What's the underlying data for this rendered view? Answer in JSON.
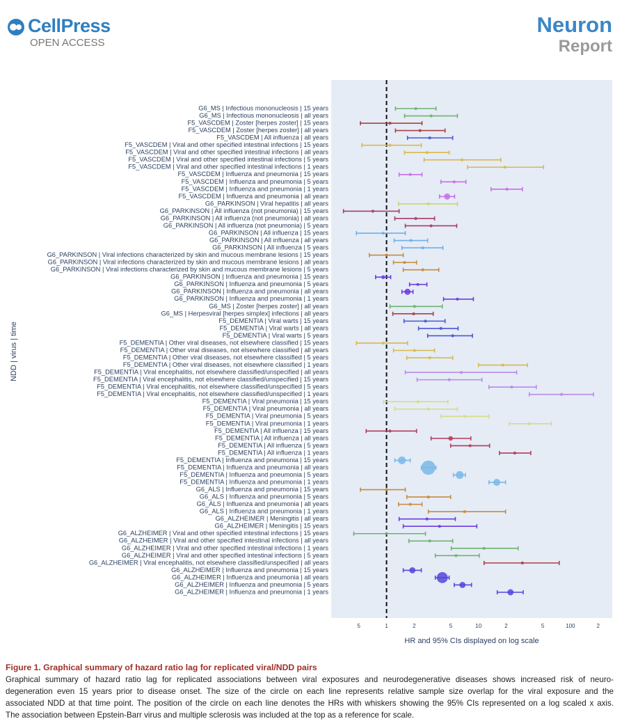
{
  "header": {
    "publisher": "CellPress",
    "access": "OPEN ACCESS",
    "journal": "Neuron",
    "article_type": "Report"
  },
  "chart_data": {
    "type": "forest",
    "ylabel": "NDD | virus | time",
    "xlabel": "HR and 95% CIs displayed on log scale",
    "xscale": "log",
    "xlim": [
      0.25,
      285
    ],
    "xticks": [
      {
        "value": 0.5,
        "label": "5"
      },
      1,
      2,
      5,
      10,
      {
        "value": 20,
        "label": "2"
      },
      {
        "value": 50,
        "label": "5"
      },
      100,
      {
        "value": 200,
        "label": "2"
      }
    ],
    "reference_line": 1,
    "categories": [
      "G6_MS | Infectious mononucleosis | 15 years",
      "G6_MS | Infectious mononucleosis | all years",
      "F5_VASCDEM | Zoster [herpes zoster] | 15 years",
      "F5_VASCDEM | Zoster [herpes zoster] | all years",
      "F5_VASCDEM | All influenza | all years",
      "F5_VASCDEM | Viral and other specified intestinal infections | 15 years",
      "F5_VASCDEM | Viral and other specified intestinal infections | all years",
      "F5_VASCDEM | Viral and other specified intestinal infections | 5 years",
      "F5_VASCDEM | Viral and other specified intestinal infections | 1 years",
      "F5_VASCDEM | Influenza and pneumonia | 15 years",
      "F5_VASCDEM | Influenza and pneumonia | 5 years",
      "F5_VASCDEM | Influenza and pneumonia | 1 years",
      "F5_VASCDEM | Influenza and pneumonia | all years",
      "G6_PARKINSON | Viral hepatitis | all years",
      "G6_PARKINSON | All influenza (not pneumonia) | 15 years",
      "G6_PARKINSON | All influenza (not pneumonia) | all years",
      "G6_PARKINSON | All influenza (not pneumonia) | 5 years",
      "G6_PARKINSON | All influenza | 15 years",
      "G6_PARKINSON | All influenza | all years",
      "G6_PARKINSON | All influenza | 5 years",
      "G6_PARKINSON | Viral infections characterized by skin and mucous membrane lesions | 15 years",
      "G6_PARKINSON | Viral infections characterized by skin and mucous membrane lesions | all years",
      "G6_PARKINSON | Viral infections characterized by skin and mucous membrane lesions | 5 years",
      "G6_PARKINSON | Influenza and pneumonia | 15 years",
      "G6_PARKINSON | Influenza and pneumonia | 5 years",
      "G6_PARKINSON | Influenza and pneumonia | all years",
      "G6_PARKINSON | Influenza and pneumonia | 1 years",
      "G6_MS | Zoster [herpes zoster] | all years",
      "G6_MS | Herpesviral [herpes simplex] infections | all years",
      "F5_DEMENTIA | Viral warts | 15 years",
      "F5_DEMENTIA | Viral warts | all years",
      "F5_DEMENTIA | Viral warts | 5 years",
      "F5_DEMENTIA | Other viral diseases, not elsewhere classified | 15 years",
      "F5_DEMENTIA | Other viral diseases, not elsewhere classified | all years",
      "F5_DEMENTIA | Other viral diseases, not elsewhere classified | 5 years",
      "F5_DEMENTIA | Other viral diseases, not elsewhere classified | 1 years",
      "F5_DEMENTIA | Viral encephalitis, not elsewhere classified/unspecified | all years",
      "F5_DEMENTIA | Viral encephalitis, not elsewhere classified/unspecified | 15 years",
      "F5_DEMENTIA | Viral encephalitis, not elsewhere classified/unspecified | 5 years",
      "F5_DEMENTIA | Viral encephalitis, not elsewhere classified/unspecified | 1 years",
      "F5_DEMENTIA | Viral pneumonia | 15 years",
      "F5_DEMENTIA | Viral pneumonia | all years",
      "F5_DEMENTIA | Viral pneumonia | 5 years",
      "F5_DEMENTIA | Viral pneumonia | 1 years",
      "F5_DEMENTIA | All influenza | 15 years",
      "F5_DEMENTIA | All influenza | all years",
      "F5_DEMENTIA | All influenza | 5 years",
      "F5_DEMENTIA | All influenza | 1 years",
      "F5_DEMENTIA | Influenza and pneumonia | 15 years",
      "F5_DEMENTIA | Influenza and pneumonia | all years",
      "F5_DEMENTIA | Influenza and pneumonia | 5 years",
      "F5_DEMENTIA | Influenza and pneumonia | 1 years",
      "G6_ALS | Influenza and pneumonia | 15 years",
      "G6_ALS | Influenza and pneumonia | 5 years",
      "G6_ALS | Influenza and pneumonia | all years",
      "G6_ALS | Influenza and pneumonia | 1 years",
      "G6_ALZHEIMER | Meningitis | all years",
      "G6_ALZHEIMER | Meningitis | 15 years",
      "G6_ALZHEIMER | Viral and other specified intestinal infections | 15 years",
      "G6_ALZHEIMER | Viral and other specified intestinal infections | all years",
      "G6_ALZHEIMER | Viral and other specified intestinal infections | 1 years",
      "G6_ALZHEIMER | Viral and other specified intestinal infections | 5 years",
      "G6_ALZHEIMER | Viral encephalitis, not elsewhere classified/unspecified | all years",
      "G6_ALZHEIMER | Influenza and pneumonia | 15 years",
      "G6_ALZHEIMER | Influenza and pneumonia | all years",
      "G6_ALZHEIMER | Influenza and pneumonia | 5 years",
      "G6_ALZHEIMER | Influenza and pneumonia | 1 years"
    ],
    "values": [
      2.08,
      3.05,
      1.09,
      2.31,
      2.95,
      1.09,
      2.75,
      6.6,
      19.4,
      1.81,
      5.44,
      20.4,
      4.56,
      2.85,
      0.71,
      2.08,
      3.05,
      0.92,
      1.84,
      2.48,
      1.0,
      1.57,
      2.48,
      0.92,
      2.19,
      1.69,
      5.9,
      2.01,
      1.97,
      2.65,
      3.9,
      5.24,
      0.92,
      2.01,
      2.95,
      18.4,
      6.5,
      4.8,
      23,
      80,
      2.19,
      2.85,
      7.06,
      35.6,
      1.09,
      4.98,
      8.1,
      24.8,
      1.47,
      2.85,
      6.25,
      15.8,
      1.0,
      2.85,
      1.81,
      7.06,
      2.75,
      3.77,
      1.0,
      2.95,
      11.5,
      5.7,
      30,
      1.91,
      4.04,
      6.7,
      22.3
    ],
    "lower": [
      1.25,
      1.57,
      0.52,
      1.25,
      1.69,
      0.54,
      1.57,
      2.56,
      7.6,
      1.37,
      3.9,
      13.7,
      3.77,
      1.35,
      0.34,
      1.23,
      1.6,
      0.47,
      1.21,
      1.47,
      0.65,
      1.19,
      1.52,
      0.76,
      1.78,
      1.47,
      4.17,
      1.09,
      1.17,
      1.55,
      2.23,
      2.8,
      0.47,
      1.19,
      1.66,
      10,
      1.6,
      2.15,
      13,
      35.7,
      0.93,
      1.23,
      3.9,
      21.6,
      0.6,
      3.05,
      4.98,
      16.9,
      1.23,
      2.39,
      5.34,
      13,
      0.52,
      1.66,
      1.35,
      2.85,
      1.37,
      1.52,
      0.44,
      1.75,
      5.06,
      3.39,
      11.5,
      1.52,
      3.39,
      5.44,
      16
    ],
    "upper": [
      3.45,
      5.9,
      2.43,
      4.33,
      5.24,
      2.39,
      4.8,
      17.5,
      51,
      2.43,
      7.3,
      30,
      5.5,
      5.9,
      1.37,
      3.33,
      5.8,
      1.6,
      2.8,
      4.1,
      1.52,
      2.12,
      3.7,
      1.11,
      2.75,
      1.94,
      8.8,
      4.04,
      3.22,
      4.33,
      6.0,
      8.6,
      1.69,
      3.33,
      5.24,
      34,
      26,
      10.9,
      42.5,
      178,
      4.65,
      5.9,
      13,
      62,
      2.12,
      8.25,
      13.2,
      37,
      1.81,
      3.45,
      7.2,
      19.7,
      1.6,
      4.98,
      2.43,
      19.7,
      5.6,
      9.6,
      2.65,
      5.24,
      27,
      10.2,
      75.5,
      2.39,
      4.8,
      8.4,
      30.6
    ],
    "sizes": [
      1,
      1,
      1,
      1,
      1,
      1,
      1,
      1,
      1,
      1,
      1,
      1,
      3,
      1,
      1,
      1,
      1,
      1,
      1,
      1,
      1,
      1,
      1,
      1.5,
      1,
      3,
      1,
      1,
      1,
      1,
      1,
      1,
      1,
      1,
      1,
      1,
      1,
      1,
      1,
      1,
      1,
      1,
      1,
      1,
      1,
      2,
      1,
      1,
      4,
      8,
      4,
      3.5,
      1,
      1,
      1,
      1,
      1,
      1,
      1,
      1,
      1,
      1,
      1,
      3,
      6,
      3,
      3
    ],
    "colors": [
      "#6db36d",
      "#6db36d",
      "#a94040",
      "#a94040",
      "#4b55d6",
      "#d9b84c",
      "#d9b84c",
      "#d9b84c",
      "#d9b84c",
      "#c86ee6",
      "#c86ee6",
      "#c86ee6",
      "#c86ee6",
      "#c9d66b",
      "#aa3b66",
      "#aa3b66",
      "#aa3b66",
      "#72aee6",
      "#72aee6",
      "#72aee6",
      "#c88a3a",
      "#c88a3a",
      "#c88a3a",
      "#6b3be0",
      "#6b3be0",
      "#6b3be0",
      "#6b3be0",
      "#6db36d",
      "#a94040",
      "#4b55d6",
      "#4b55d6",
      "#4b55d6",
      "#d9b84c",
      "#d9b84c",
      "#d9b84c",
      "#d9b84c",
      "#b98ae9",
      "#b98ae9",
      "#b98ae9",
      "#b98ae9",
      "#d2dd85",
      "#d2dd85",
      "#d2dd85",
      "#d2dd85",
      "#b5395a",
      "#b5395a",
      "#b5395a",
      "#b5395a",
      "#7ab8e8",
      "#7ab8e8",
      "#7ab8e8",
      "#7ab8e8",
      "#c88a3a",
      "#c88a3a",
      "#c88a3a",
      "#c88a3a",
      "#6b3be0",
      "#6b3be0",
      "#6db36d",
      "#6db36d",
      "#6db36d",
      "#6db36d",
      "#a94040",
      "#5447dd",
      "#5447dd",
      "#5447dd",
      "#5447dd"
    ]
  },
  "caption": {
    "title": "Figure 1. Graphical summary of hazard ratio lag for replicated viral/NDD pairs",
    "body": [
      "Graphical summary of hazard ratio lag for replicated associations between viral exposures and neurodegenerative diseases shows increased risk of neuro-",
      "degeneration even 15 years prior to disease onset. The size of the circle on each line represents relative sample size overlap for the viral exposure and the",
      "associated NDD at that time point. The position of the circle on each line denotes the HRs with whiskers showing the 95% CIs represented on a log scaled x axis.",
      "The association between Epstein-Barr virus and multiple sclerosis was included at the top as a reference for scale."
    ]
  }
}
